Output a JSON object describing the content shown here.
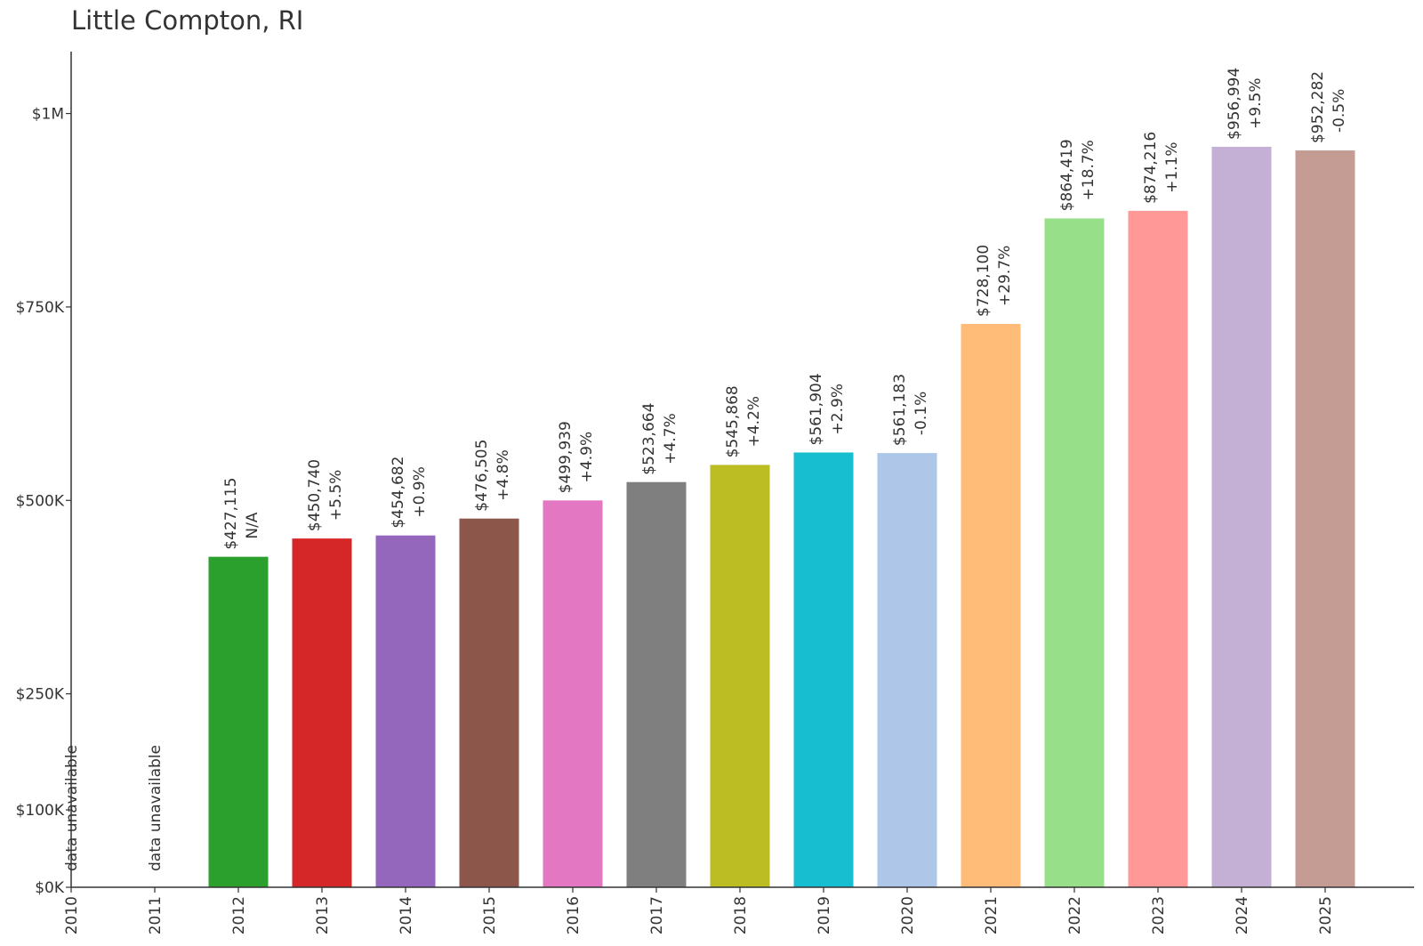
{
  "chart_data": {
    "type": "bar",
    "title": "Little Compton, RI",
    "xlabel": "",
    "ylabel": "",
    "categories": [
      "2010",
      "2011",
      "2012",
      "2013",
      "2014",
      "2015",
      "2016",
      "2017",
      "2018",
      "2019",
      "2020",
      "2021",
      "2022",
      "2023",
      "2024",
      "2025"
    ],
    "values": [
      null,
      null,
      427115,
      450740,
      454682,
      476505,
      499939,
      523664,
      545868,
      561904,
      561183,
      728100,
      864419,
      874216,
      956994,
      952282
    ],
    "value_labels": [
      "",
      "",
      "$427,115",
      "$450,740",
      "$454,682",
      "$476,505",
      "$499,939",
      "$523,664",
      "$545,868",
      "$561,904",
      "$561,183",
      "$728,100",
      "$864,419",
      "$874,216",
      "$956,994",
      "$952,282"
    ],
    "change_labels": [
      "",
      "",
      "N/A",
      "+5.5%",
      "+0.9%",
      "+4.8%",
      "+4.9%",
      "+4.7%",
      "+4.2%",
      "+2.9%",
      "-0.1%",
      "+29.7%",
      "+18.7%",
      "+1.1%",
      "+9.5%",
      "-0.5%"
    ],
    "unavailable_labels": [
      "data unavailable",
      "data unavailable",
      "",
      "",
      "",
      "",
      "",
      "",
      "",
      "",
      "",
      "",
      "",
      "",
      "",
      ""
    ],
    "colors": [
      "#1f77b4",
      "#ff7f0e",
      "#2ca02c",
      "#d62728",
      "#9467bd",
      "#8c564b",
      "#e377c2",
      "#7f7f7f",
      "#bcbd22",
      "#17becf",
      "#aec7e8",
      "#ffbb78",
      "#98df8a",
      "#ff9896",
      "#c5b0d5",
      "#c49c94"
    ],
    "yticks": [
      0,
      100000,
      250000,
      500000,
      750000,
      1000000
    ],
    "ytick_labels": [
      "$0K",
      "$100K",
      "$250K",
      "$500K",
      "$750K",
      "$1M"
    ],
    "ylim": [
      0,
      1080000
    ],
    "grid": false,
    "legend": "none"
  }
}
